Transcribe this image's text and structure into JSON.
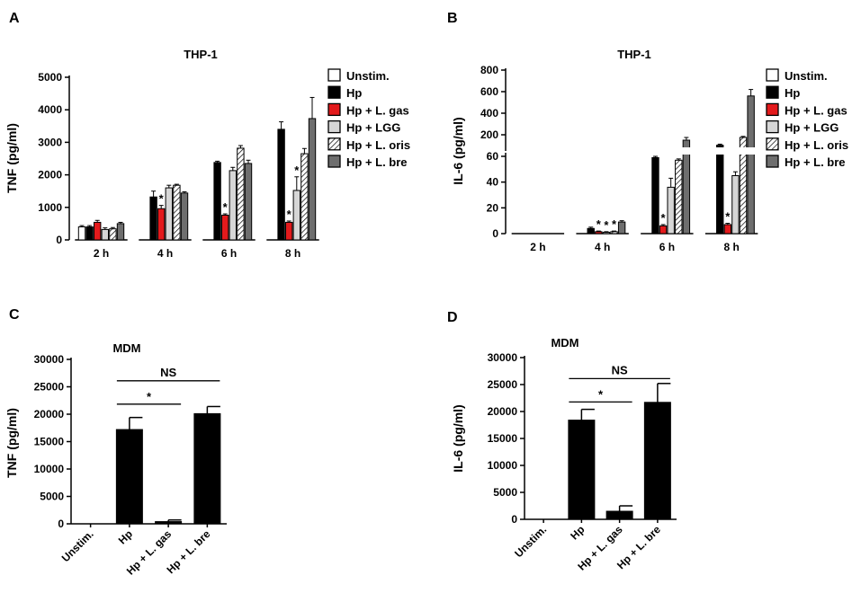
{
  "figure": {
    "panel_letters": [
      "A",
      "B",
      "C",
      "D"
    ]
  },
  "colors": {
    "unstim": "#ffffff",
    "hp": "#000000",
    "lgas": "#e31a1c",
    "lgg": "#d6d6d6",
    "loris": "#ffffff",
    "lbre": "#6e6e6e"
  },
  "chart_data": [
    {
      "panel": "A",
      "type": "bar",
      "title": "THP-1",
      "ylabel": "TNF (pg/ml)",
      "xlabel": "",
      "ylim": [
        0,
        5000
      ],
      "yticks": [
        "0",
        "1000",
        "2000",
        "3000",
        "4000",
        "5000"
      ],
      "categories": [
        "2 h",
        "4 h",
        "6 h",
        "8 h"
      ],
      "series": [
        {
          "name": "Unstim.",
          "values": [
            400,
            0,
            0,
            0
          ],
          "errors": [
            40,
            0,
            0,
            0
          ],
          "stars": [
            false,
            false,
            false,
            false
          ],
          "fill": "unstim"
        },
        {
          "name": "Hp",
          "values": [
            400,
            1320,
            2380,
            3400
          ],
          "errors": [
            40,
            180,
            40,
            230
          ],
          "stars": [
            false,
            false,
            false,
            false
          ],
          "fill": "hp"
        },
        {
          "name": "Hp + L. gas",
          "values": [
            540,
            960,
            760,
            540
          ],
          "errors": [
            60,
            100,
            40,
            40
          ],
          "stars": [
            false,
            true,
            true,
            true
          ],
          "fill": "lgas"
        },
        {
          "name": "Hp + LGG",
          "values": [
            320,
            1600,
            2130,
            1520
          ],
          "errors": [
            50,
            80,
            100,
            420
          ],
          "stars": [
            false,
            false,
            false,
            true
          ],
          "fill": "lgg"
        },
        {
          "name": "Hp + L. oris",
          "values": [
            340,
            1680,
            2820,
            2650
          ],
          "errors": [
            40,
            30,
            80,
            160
          ],
          "stars": [
            false,
            false,
            false,
            false
          ],
          "fill": "loris"
        },
        {
          "name": "Hp + L. bre",
          "values": [
            500,
            1440,
            2350,
            3730
          ],
          "errors": [
            40,
            40,
            100,
            650
          ],
          "stars": [
            false,
            false,
            false,
            false
          ],
          "fill": "lbre"
        }
      ],
      "star_label": "*",
      "legend": "right"
    },
    {
      "panel": "B",
      "type": "bar",
      "title": "THP-1",
      "ylabel": "IL-6 (pg/ml)",
      "xlabel": "",
      "ylim_lower": [
        0,
        60
      ],
      "ylim_upper": [
        100,
        800
      ],
      "yticks": [
        "0",
        "20",
        "40",
        "60",
        "200",
        "400",
        "600",
        "800"
      ],
      "categories": [
        "2 h",
        "4 h",
        "6 h",
        "8 h"
      ],
      "series": [
        {
          "name": "Unstim.",
          "values": [
            0,
            0,
            0,
            0
          ],
          "errors": [
            0,
            0,
            0,
            0
          ],
          "stars": [
            false,
            false,
            false,
            false
          ],
          "fill": "unstim"
        },
        {
          "name": "Hp",
          "values": [
            0,
            4,
            59,
            103
          ],
          "errors": [
            0,
            1,
            1,
            10
          ],
          "stars": [
            false,
            false,
            false,
            false
          ],
          "fill": "hp"
        },
        {
          "name": "Hp + L. gas",
          "values": [
            0,
            1.5,
            6,
            7
          ],
          "errors": [
            0,
            0.5,
            1,
            1
          ],
          "stars": [
            false,
            true,
            true,
            true
          ],
          "fill": "lgas"
        },
        {
          "name": "Hp + LGG",
          "values": [
            0,
            1,
            36,
            45
          ],
          "errors": [
            0,
            0.5,
            7,
            3
          ],
          "stars": [
            false,
            true,
            false,
            false
          ],
          "fill": "lgg"
        },
        {
          "name": "Hp + L. oris",
          "values": [
            0,
            1.5,
            57,
            175
          ],
          "errors": [
            0,
            0.5,
            1,
            10
          ],
          "stars": [
            false,
            true,
            false,
            false
          ],
          "fill": "loris"
        },
        {
          "name": "Hp + L. bre",
          "values": [
            0,
            9,
            150,
            560
          ],
          "errors": [
            0,
            1,
            25,
            60
          ],
          "stars": [
            false,
            false,
            false,
            false
          ],
          "fill": "lbre"
        }
      ],
      "star_label": "*",
      "legend": "right"
    },
    {
      "panel": "C",
      "type": "bar",
      "title": "MDM",
      "ylabel": "TNF (pg/ml)",
      "xlabel": "",
      "ylim": [
        0,
        30000
      ],
      "yticks": [
        "0",
        "5000",
        "10000",
        "15000",
        "20000",
        "25000",
        "30000"
      ],
      "categories": [
        "Unstim.",
        "Hp",
        "Hp + L. gas",
        "Hp + L. bre"
      ],
      "values": [
        0,
        17200,
        400,
        20100
      ],
      "errors": [
        0,
        2200,
        300,
        1300
      ],
      "annotations": [
        "NS",
        "*"
      ]
    },
    {
      "panel": "D",
      "type": "bar",
      "title": "MDM",
      "ylabel": "IL-6 (pg/ml)",
      "xlabel": "",
      "ylim": [
        0,
        30000
      ],
      "yticks": [
        "0",
        "5000",
        "10000",
        "15000",
        "20000",
        "25000",
        "30000"
      ],
      "categories": [
        "Unstim.",
        "Hp",
        "Hp + L. gas",
        "Hp + L. bre"
      ],
      "values": [
        0,
        18400,
        1500,
        21700
      ],
      "errors": [
        0,
        2000,
        1000,
        3500
      ],
      "annotations": [
        "NS",
        "*"
      ]
    }
  ]
}
